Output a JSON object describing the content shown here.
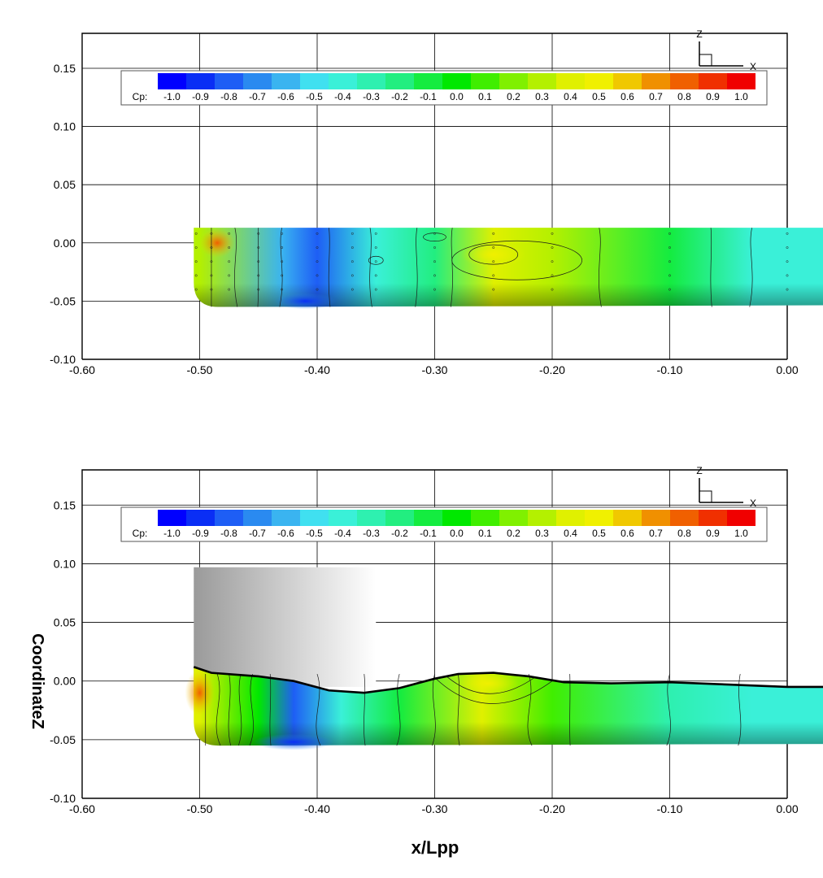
{
  "colorbar": {
    "label": "Cp:",
    "ticks": [
      "-1.0",
      "-0.9",
      "-0.8",
      "-0.7",
      "-0.6",
      "-0.5",
      "-0.4",
      "-0.3",
      "-0.2",
      "-0.1",
      "0.0",
      "0.1",
      "0.2",
      "0.3",
      "0.4",
      "0.5",
      "0.6",
      "0.7",
      "0.8",
      "0.9",
      "1.0"
    ],
    "colors": [
      "#0000ff",
      "#0a2ef5",
      "#1e5ef5",
      "#2a8af0",
      "#3ab4f0",
      "#40e0f0",
      "#3af0d8",
      "#2ef0b0",
      "#22ee80",
      "#14ec40",
      "#00e800",
      "#40ee00",
      "#80f000",
      "#b4f000",
      "#e0f000",
      "#f0f000",
      "#f0c800",
      "#f09000",
      "#f06000",
      "#f03000",
      "#f00000"
    ]
  },
  "axes_triad": {
    "z_label": "Z",
    "x_label": "X"
  },
  "chart_data": [
    {
      "type": "heatmap",
      "panel": "top",
      "title": "",
      "xlabel": "",
      "ylabel": "",
      "xlim": [
        -0.6,
        0.0
      ],
      "ylim": [
        -0.1,
        0.18
      ],
      "xticks": [
        "-0.60",
        "-0.50",
        "-0.40",
        "-0.30",
        "-0.20",
        "-0.10",
        "0.00"
      ],
      "yticks": [
        "0.15",
        "0.10",
        "0.05",
        "0.00",
        "-0.05",
        "-0.10"
      ],
      "grid": true,
      "legend": "top",
      "hull_x": [
        -0.505,
        0.03
      ],
      "hull_z": [
        -0.055,
        0.013
      ],
      "x": [
        -0.5,
        -0.43,
        -0.4,
        -0.35,
        -0.3,
        -0.25,
        -0.2,
        -0.1,
        -0.03
      ],
      "cp": [
        0.3,
        -0.6,
        -0.8,
        -0.4,
        -0.2,
        0.4,
        0.3,
        -0.1,
        -0.4
      ]
    },
    {
      "type": "heatmap",
      "panel": "bottom",
      "title": "",
      "xlabel": "x/Lpp",
      "ylabel": "CoordinateZ",
      "xlim": [
        -0.6,
        0.0
      ],
      "ylim": [
        -0.1,
        0.18
      ],
      "xticks": [
        "-0.60",
        "-0.50",
        "-0.40",
        "-0.30",
        "-0.20",
        "-0.10",
        "0.00"
      ],
      "yticks": [
        "0.15",
        "0.10",
        "0.05",
        "0.00",
        "-0.05",
        "-0.10"
      ],
      "grid": true,
      "legend": "top",
      "wave_profile": {
        "x": [
          -0.505,
          -0.49,
          -0.45,
          -0.42,
          -0.39,
          -0.36,
          -0.33,
          -0.3,
          -0.28,
          -0.25,
          -0.22,
          -0.19,
          -0.15,
          -0.1,
          -0.05,
          0.0,
          0.03
        ],
        "z": [
          0.012,
          0.007,
          0.004,
          0.0,
          -0.008,
          -0.01,
          -0.006,
          0.002,
          0.006,
          0.007,
          0.004,
          -0.001,
          -0.002,
          -0.001,
          -0.003,
          -0.005,
          -0.005
        ]
      },
      "x": [
        -0.5,
        -0.45,
        -0.42,
        -0.38,
        -0.33,
        -0.26,
        -0.2,
        -0.1,
        -0.03
      ],
      "cp": [
        0.4,
        0.0,
        -0.8,
        -0.4,
        -0.1,
        0.4,
        0.1,
        -0.3,
        -0.4
      ]
    }
  ]
}
